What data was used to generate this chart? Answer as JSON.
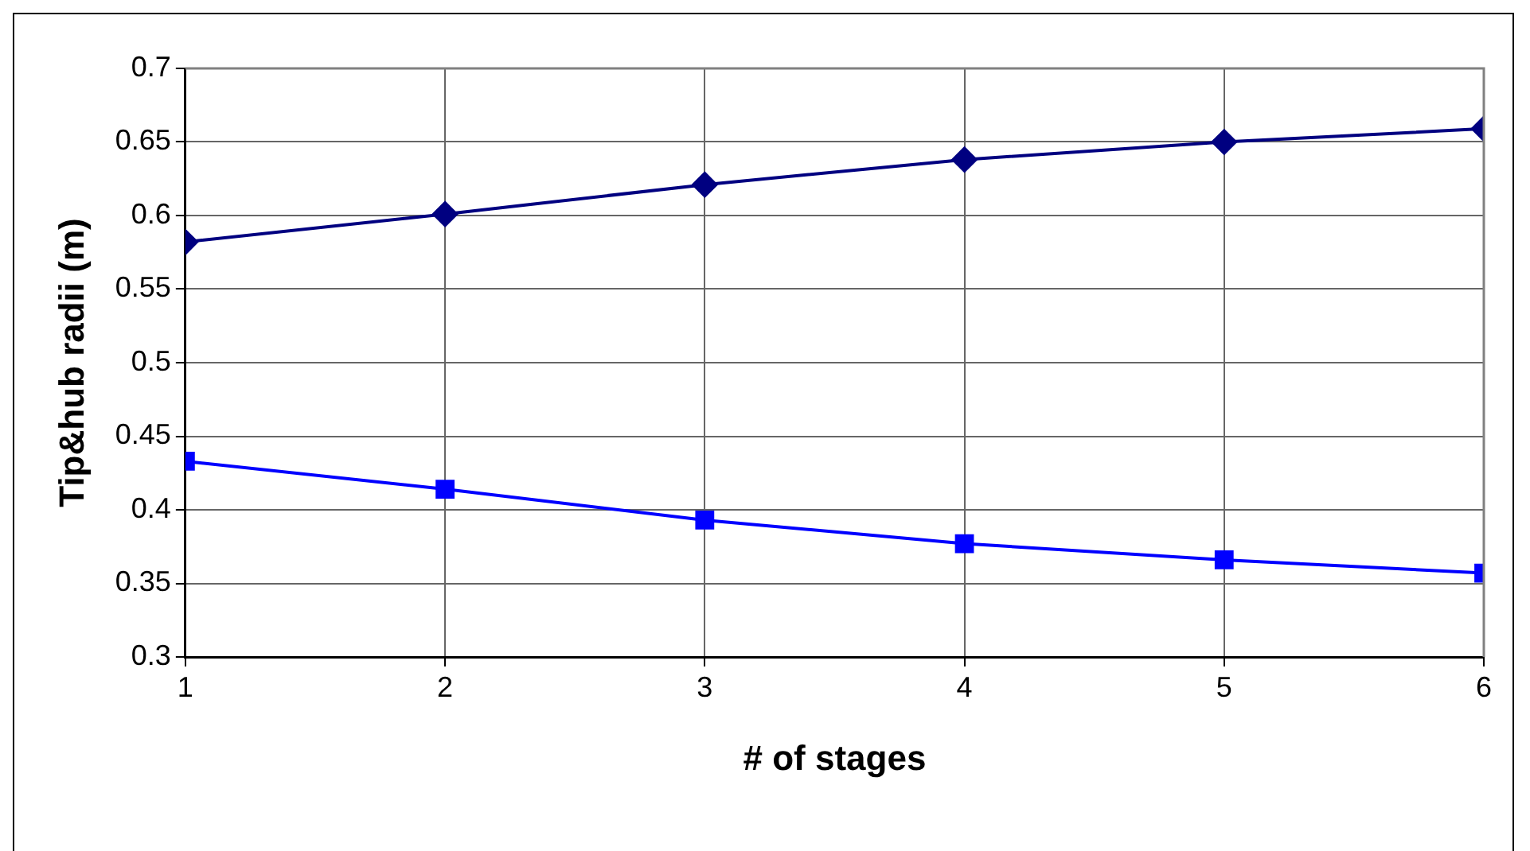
{
  "chart_data": {
    "type": "line",
    "xlabel": "# of stages",
    "ylabel": "Tip&hub radii (m)",
    "x": [
      1,
      2,
      3,
      4,
      5,
      6
    ],
    "series": [
      {
        "color": "#000080",
        "marker": "diamond",
        "values": [
          0.582,
          0.601,
          0.621,
          0.638,
          0.65,
          0.659
        ]
      },
      {
        "color": "#0000ff",
        "marker": "square",
        "values": [
          0.433,
          0.414,
          0.393,
          0.377,
          0.366,
          0.357
        ]
      }
    ],
    "xlim": [
      1,
      6
    ],
    "xticks": [
      1,
      2,
      3,
      4,
      5,
      6
    ],
    "ylim": [
      0.3,
      0.7
    ],
    "yticks": [
      0.3,
      0.35,
      0.4,
      0.45,
      0.5,
      0.55,
      0.6,
      0.65,
      0.7
    ],
    "grid": true,
    "legend": false,
    "line_style": "solid"
  }
}
